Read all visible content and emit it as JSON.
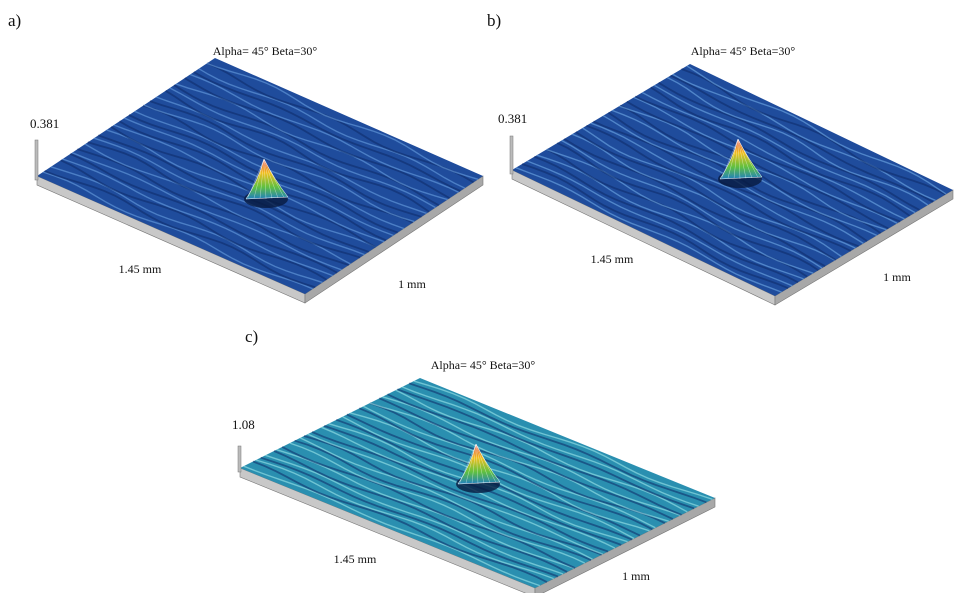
{
  "panels": [
    {
      "label": "a)",
      "view": "Alpha= 45°  Beta=30°",
      "height": "0.381",
      "x_length": "1.45 mm",
      "y_length": "1 mm"
    },
    {
      "label": "b)",
      "view": "Alpha= 45°  Beta=30°",
      "height": "0.381",
      "x_length": "1.45 mm",
      "y_length": "1 mm"
    },
    {
      "label": "c)",
      "view": "Alpha= 45°  Beta=30°",
      "height": "1.08",
      "x_length": "1.45 mm",
      "y_length": "1 mm"
    }
  ]
}
